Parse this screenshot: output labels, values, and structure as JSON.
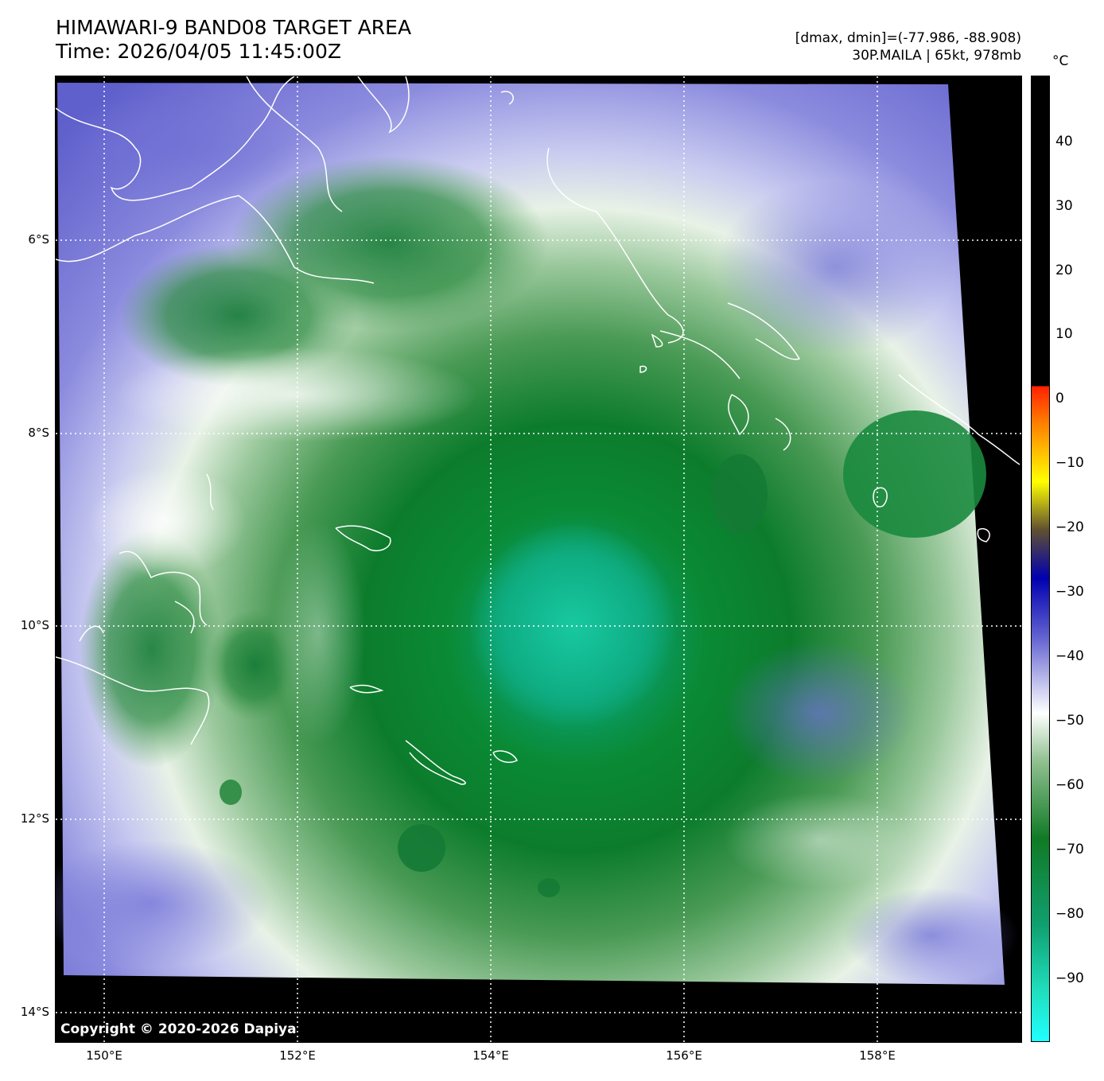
{
  "header": {
    "title_line1": "HIMAWARI-9 BAND08 TARGET AREA",
    "title_line2": "Time: 2026/04/05 11:45:00Z",
    "range_text": "[dmax, dmin]=(-77.986, -88.908)",
    "storm_text": "30P.MAILA | 65kt, 978mb"
  },
  "colorbar": {
    "unit": "°C",
    "ticks": [
      "40",
      "30",
      "20",
      "10",
      "0",
      "−10",
      "−20",
      "−30",
      "−40",
      "−50",
      "−60",
      "−70",
      "−80",
      "−90"
    ]
  },
  "axes": {
    "lat_labels": [
      "6°S",
      "8°S",
      "10°S",
      "12°S",
      "14°S"
    ],
    "lon_labels": [
      "150°E",
      "152°E",
      "154°E",
      "156°E",
      "158°E"
    ]
  },
  "map": {
    "copyright": "Copyright © 2020-2026 Dapiya"
  },
  "colors": {
    "cold_top": "#00d9a0",
    "deep_green": "#0a7a2a",
    "white_band": "#ffffff",
    "blue_band": "#5a5ad0",
    "background": "#000000"
  }
}
